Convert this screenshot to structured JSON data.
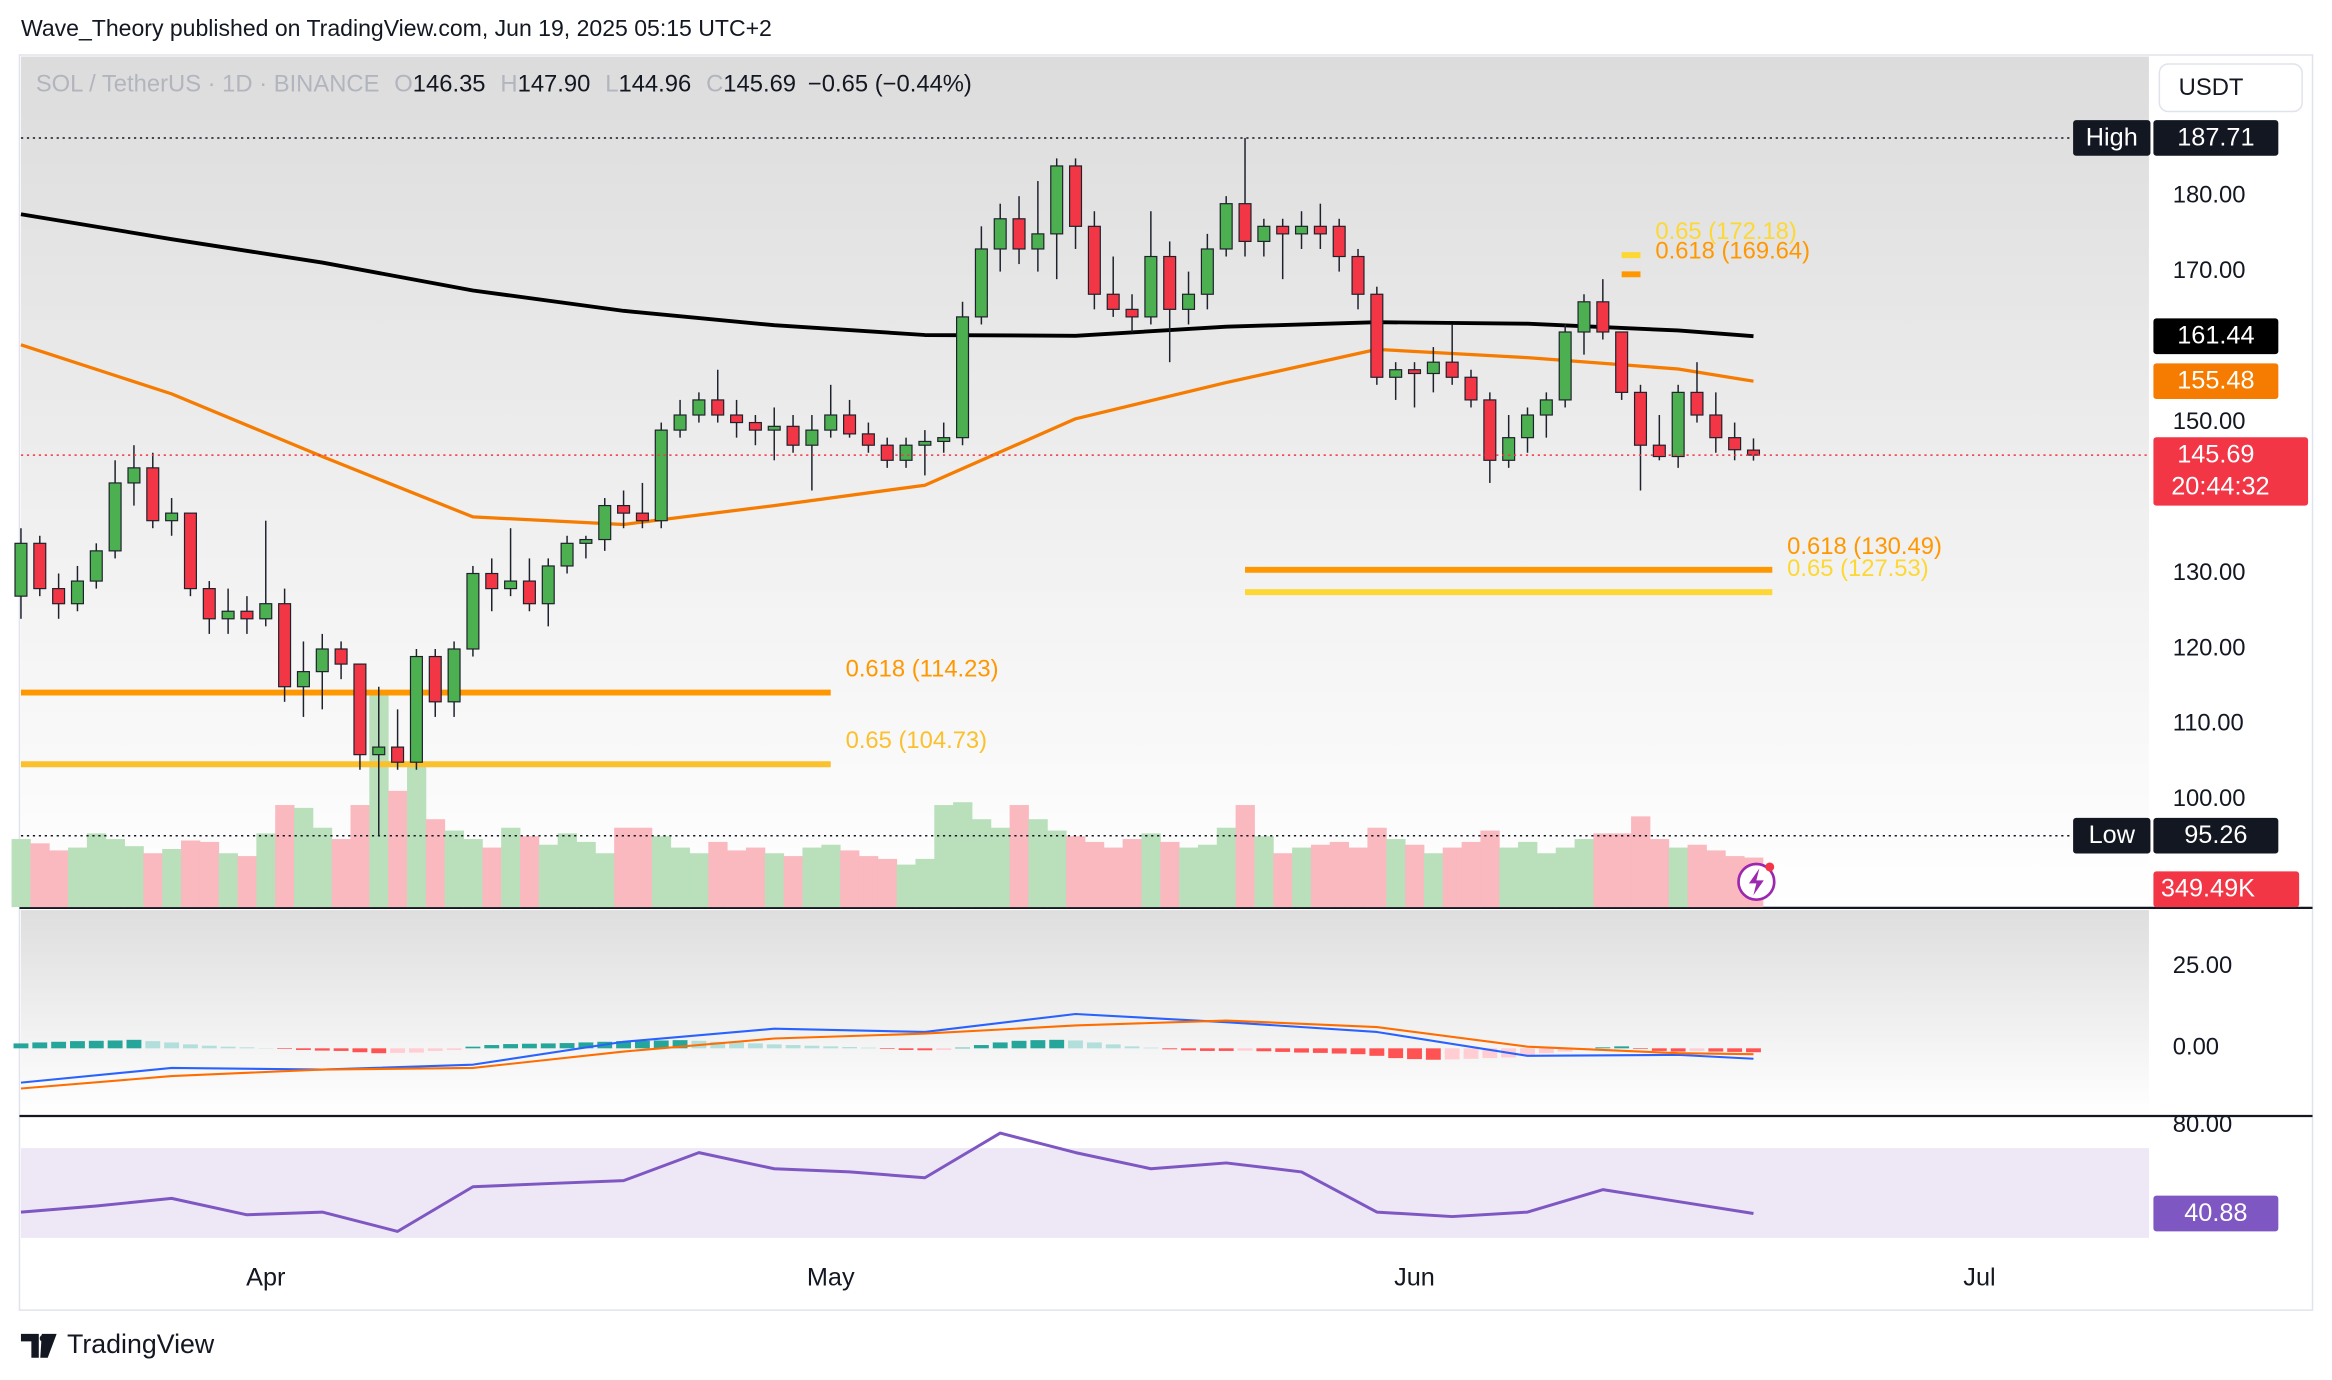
{
  "header": {
    "publisher": "Wave_Theory published on TradingView.com, Jun 19, 2025 05:15 UTC+2"
  },
  "footer": {
    "brand": "TradingView"
  },
  "chart_data": [
    {
      "type": "candlestick",
      "title": "SOL / TetherUS · 1D · BINANCE",
      "ohlc_legend": [
        {
          "key": "O",
          "label": "146.35"
        },
        {
          "key": "H",
          "label": "147.90"
        },
        {
          "key": "L",
          "label": "144.96"
        },
        {
          "key": "C",
          "label": "145.69"
        }
      ],
      "change": "−0.65 (−0.44%)",
      "currency": "USDT",
      "countdown": "20:44:32",
      "up_color": "#4caf50",
      "down_color": "#f23645",
      "open": [
        127,
        134,
        128,
        126,
        129,
        133,
        142,
        144,
        137,
        138,
        128,
        124,
        125,
        124,
        126,
        115,
        117,
        120,
        118,
        106,
        107,
        105,
        119,
        113,
        120,
        130,
        128,
        129,
        126,
        131,
        134,
        134.5,
        139,
        138,
        137,
        149,
        151,
        153,
        151,
        150,
        149,
        149.5,
        147,
        149,
        151,
        148.5,
        147,
        145,
        147,
        147.5,
        148,
        164,
        173,
        177,
        173,
        175,
        184,
        176,
        167,
        165,
        164,
        172,
        165,
        167,
        173,
        179,
        174,
        176,
        175,
        176,
        176,
        172,
        167,
        156,
        157,
        156.5,
        158,
        156,
        153,
        145,
        148,
        151,
        153,
        162,
        166,
        162,
        154,
        147,
        145.5,
        154,
        151,
        148,
        146.35
      ],
      "high": [
        136,
        135,
        130,
        131,
        134,
        145,
        147,
        146,
        140,
        138,
        129,
        128,
        127,
        137,
        128,
        121,
        122,
        121,
        118,
        115,
        112,
        120,
        120,
        121,
        131,
        132,
        136,
        132,
        132,
        135,
        135,
        140,
        141,
        142,
        150,
        153,
        154,
        157,
        153,
        151,
        152,
        151,
        151,
        155,
        153,
        150,
        148,
        148,
        149,
        150,
        166,
        176,
        179,
        180,
        182,
        185,
        185,
        178,
        172,
        167,
        178,
        174,
        170,
        175,
        180,
        187.71,
        177,
        177,
        178,
        179,
        177,
        173,
        168,
        158,
        158,
        160,
        163,
        157,
        154,
        151,
        152,
        154,
        163,
        167,
        169,
        162,
        155,
        151,
        155,
        158,
        154,
        150,
        147.9
      ],
      "low": [
        124,
        127,
        124,
        125,
        128,
        132,
        139,
        136,
        135,
        127,
        122,
        122,
        122,
        123,
        113,
        111,
        112,
        116,
        104,
        95.26,
        104,
        104,
        111,
        111,
        119,
        125,
        127,
        125,
        123,
        130,
        132,
        133,
        136,
        136,
        136,
        148,
        150,
        150,
        148,
        147,
        145,
        146,
        141,
        148,
        148,
        146,
        144,
        144,
        143,
        146,
        147,
        163,
        170,
        171,
        170,
        169,
        173,
        165,
        164,
        162,
        163,
        158,
        163,
        165,
        172,
        172,
        172,
        169,
        173,
        173,
        170,
        165,
        155,
        153,
        152,
        154,
        155,
        152,
        142,
        144,
        146,
        148,
        152,
        159,
        161,
        153,
        141,
        145,
        144,
        150,
        146,
        145,
        144.96
      ],
      "close": [
        134,
        128,
        126,
        129,
        133,
        142,
        144,
        137,
        138,
        128,
        124,
        125,
        124,
        126,
        115,
        117,
        120,
        118,
        106,
        107,
        105,
        119,
        113,
        120,
        130,
        128,
        129,
        126,
        131,
        134,
        134.5,
        139,
        138,
        137,
        149,
        151,
        153,
        151,
        150,
        149,
        149.5,
        147,
        149,
        151,
        148.5,
        147,
        145,
        147,
        147.5,
        148,
        164,
        173,
        177,
        173,
        175,
        184,
        176,
        167,
        165,
        164,
        172,
        165,
        167,
        173,
        179,
        174,
        176,
        175,
        176,
        175,
        172,
        167,
        156,
        157,
        156.5,
        158,
        156,
        153,
        145,
        148,
        151,
        153,
        162,
        166,
        162,
        154,
        147,
        145.5,
        154,
        151,
        148,
        146.4,
        145.69
      ],
      "xlim": [
        0,
        113
      ],
      "xticks": [
        {
          "value": 13,
          "label": "Apr"
        },
        {
          "value": 43,
          "label": "May"
        },
        {
          "value": 74,
          "label": "Jun"
        },
        {
          "value": 104,
          "label": "Jul"
        }
      ],
      "ylim": [
        85.8,
        198.5
      ],
      "yticks": [
        {
          "value": 100,
          "label": "100.00"
        },
        {
          "value": 110,
          "label": "110.00"
        },
        {
          "value": 120,
          "label": "120.00"
        },
        {
          "value": 130,
          "label": "130.00"
        },
        {
          "value": 150,
          "label": "150.00"
        },
        {
          "value": 170,
          "label": "170.00"
        },
        {
          "value": 180,
          "label": "180.00"
        }
      ],
      "grid": false,
      "lines": [
        {
          "color": "#000000",
          "x": [
            0,
            8,
            16,
            24,
            32,
            40,
            48,
            56,
            64,
            72,
            80,
            88,
            92
          ],
          "values": [
            177.6,
            174.3,
            171.2,
            167.5,
            164.8,
            162.9,
            161.6,
            161.5,
            162.7,
            163.3,
            163.1,
            162.2,
            161.44
          ]
        },
        {
          "color": "#f57c00",
          "x": [
            0,
            8,
            16,
            24,
            32,
            40,
            48,
            56,
            64,
            72,
            80,
            88,
            92
          ],
          "values": [
            160.3,
            153.8,
            145.5,
            137.5,
            136.5,
            139,
            141.7,
            150.5,
            155.3,
            159.7,
            158.6,
            157.1,
            155.48
          ]
        }
      ],
      "levels": [
        {
          "label": "0.618 (114.23)",
          "value": 114.23,
          "color": "#ff9800",
          "x": [
            0,
            43
          ]
        },
        {
          "label": "0.65 (104.73)",
          "value": 104.73,
          "color": "#fbc02d",
          "x": [
            0,
            43
          ]
        },
        {
          "label": "0.618 (130.49)",
          "value": 130.49,
          "color": "#ff9800",
          "x": [
            65,
            93
          ]
        },
        {
          "label": "0.65 (127.53)",
          "value": 127.53,
          "color": "#fdd835",
          "x": [
            65,
            93
          ]
        },
        {
          "label": "0.618 (169.64)",
          "value": 169.64,
          "color": "#ff9800",
          "x": [
            85,
            86
          ]
        },
        {
          "label": "0.65 (172.18)",
          "value": 172.18,
          "color": "#fdd835",
          "x": [
            85,
            86
          ]
        }
      ],
      "range_marks": [
        {
          "label": "High",
          "value": 187.71
        },
        {
          "label": "Low",
          "value": 95.26
        }
      ],
      "volume": {
        "up_color": "#b9e0bb",
        "down_color": "#f9b9bf",
        "ylim": [
          0,
          6000
        ],
        "last_label": "349.49K",
        "values": [
          480,
          450,
          400,
          420,
          520,
          480,
          430,
          380,
          410,
          470,
          460,
          380,
          360,
          520,
          720,
          700,
          560,
          480,
          720,
          1500,
          820,
          990,
          620,
          540,
          480,
          420,
          560,
          500,
          440,
          520,
          460,
          380,
          560,
          560,
          500,
          420,
          380,
          460,
          400,
          420,
          380,
          360,
          420,
          440,
          400,
          360,
          340,
          300,
          340,
          720,
          740,
          620,
          560,
          720,
          620,
          540,
          500,
          460,
          420,
          480,
          520,
          460,
          420,
          440,
          560,
          720,
          500,
          380,
          420,
          440,
          460,
          420,
          560,
          480,
          440,
          380,
          420,
          460,
          540,
          420,
          460,
          380,
          420,
          480,
          520,
          520,
          640,
          480,
          420,
          440,
          400,
          360,
          349.49
        ]
      }
    },
    {
      "type": "macd",
      "ylim": [
        -20.5,
        42.3
      ],
      "yticks": [
        {
          "value": 25,
          "label": "25.00"
        },
        {
          "value": 0,
          "label": "0.00"
        }
      ],
      "colors": [
        "#26a69a",
        "#b2dfdb",
        "#ff5252",
        "#ffcdd2"
      ],
      "histogram": [
        1.5,
        1.8,
        2,
        2.2,
        2.3,
        2.4,
        2.6,
        2.2,
        1.8,
        1.2,
        0.8,
        0.5,
        0.3,
        0.1,
        -0.2,
        -0.5,
        -0.7,
        -0.8,
        -1.2,
        -1.5,
        -1.4,
        -1.3,
        -0.8,
        -0.5,
        0.5,
        1,
        1.3,
        1.4,
        1.5,
        1.6,
        1.8,
        2,
        2.2,
        2.3,
        2.4,
        2.5,
        2.3,
        2,
        1.8,
        1.5,
        1.2,
        1,
        0.8,
        0.6,
        0.4,
        0.2,
        -0.2,
        -0.5,
        -0.6,
        -0.5,
        0.2,
        1,
        1.8,
        2.3,
        2.5,
        2.6,
        2.4,
        1.8,
        1.2,
        0.6,
        0.2,
        -0.3,
        -0.6,
        -0.8,
        -0.8,
        -0.7,
        -0.9,
        -1.1,
        -1.3,
        -1.4,
        -1.6,
        -1.8,
        -2.3,
        -3,
        -3.3,
        -3.5,
        -3.4,
        -3.2,
        -3,
        -2.8,
        -2,
        -1.5,
        -1,
        -0.5,
        0.3,
        0.6,
        -0.2,
        -0.8,
        -1,
        -0.8,
        -1,
        -1.1,
        -1.2
      ],
      "lines": [
        {
          "color": "#2962ff",
          "x": [
            0,
            8,
            16,
            24,
            32,
            40,
            48,
            56,
            64,
            72,
            80,
            88,
            92
          ],
          "values": [
            -10.5,
            -6,
            -6.5,
            -5,
            2,
            6,
            5,
            10.5,
            8,
            5,
            -2.3,
            -2,
            -3.2
          ]
        },
        {
          "color": "#ff6d00",
          "x": [
            0,
            8,
            16,
            24,
            32,
            40,
            48,
            56,
            64,
            72,
            80,
            88,
            92
          ],
          "values": [
            -12.3,
            -8.5,
            -6.5,
            -6,
            -1,
            3,
            4.5,
            7,
            8.5,
            6.5,
            0.5,
            -1.5,
            -1.8
          ]
        }
      ]
    },
    {
      "type": "rsi",
      "ylim": [
        28.3,
        83.3
      ],
      "yticks": [
        {
          "value": 80,
          "label": "80.00"
        }
      ],
      "band": [
        30,
        70
      ],
      "color": "#7e57c2",
      "x": [
        0,
        4,
        8,
        12,
        16,
        20,
        24,
        28,
        32,
        36,
        40,
        44,
        48,
        52,
        56,
        60,
        64,
        68,
        72,
        76,
        80,
        84,
        88,
        92
      ],
      "values": [
        41.5,
        44.2,
        47.6,
        40.3,
        41.5,
        32.9,
        52.8,
        54.2,
        55.5,
        68,
        60.8,
        59.4,
        56.8,
        76.7,
        68,
        60.8,
        63.4,
        59.4,
        41.5,
        39.5,
        41.5,
        51.5,
        46.2,
        40.88
      ]
    }
  ]
}
